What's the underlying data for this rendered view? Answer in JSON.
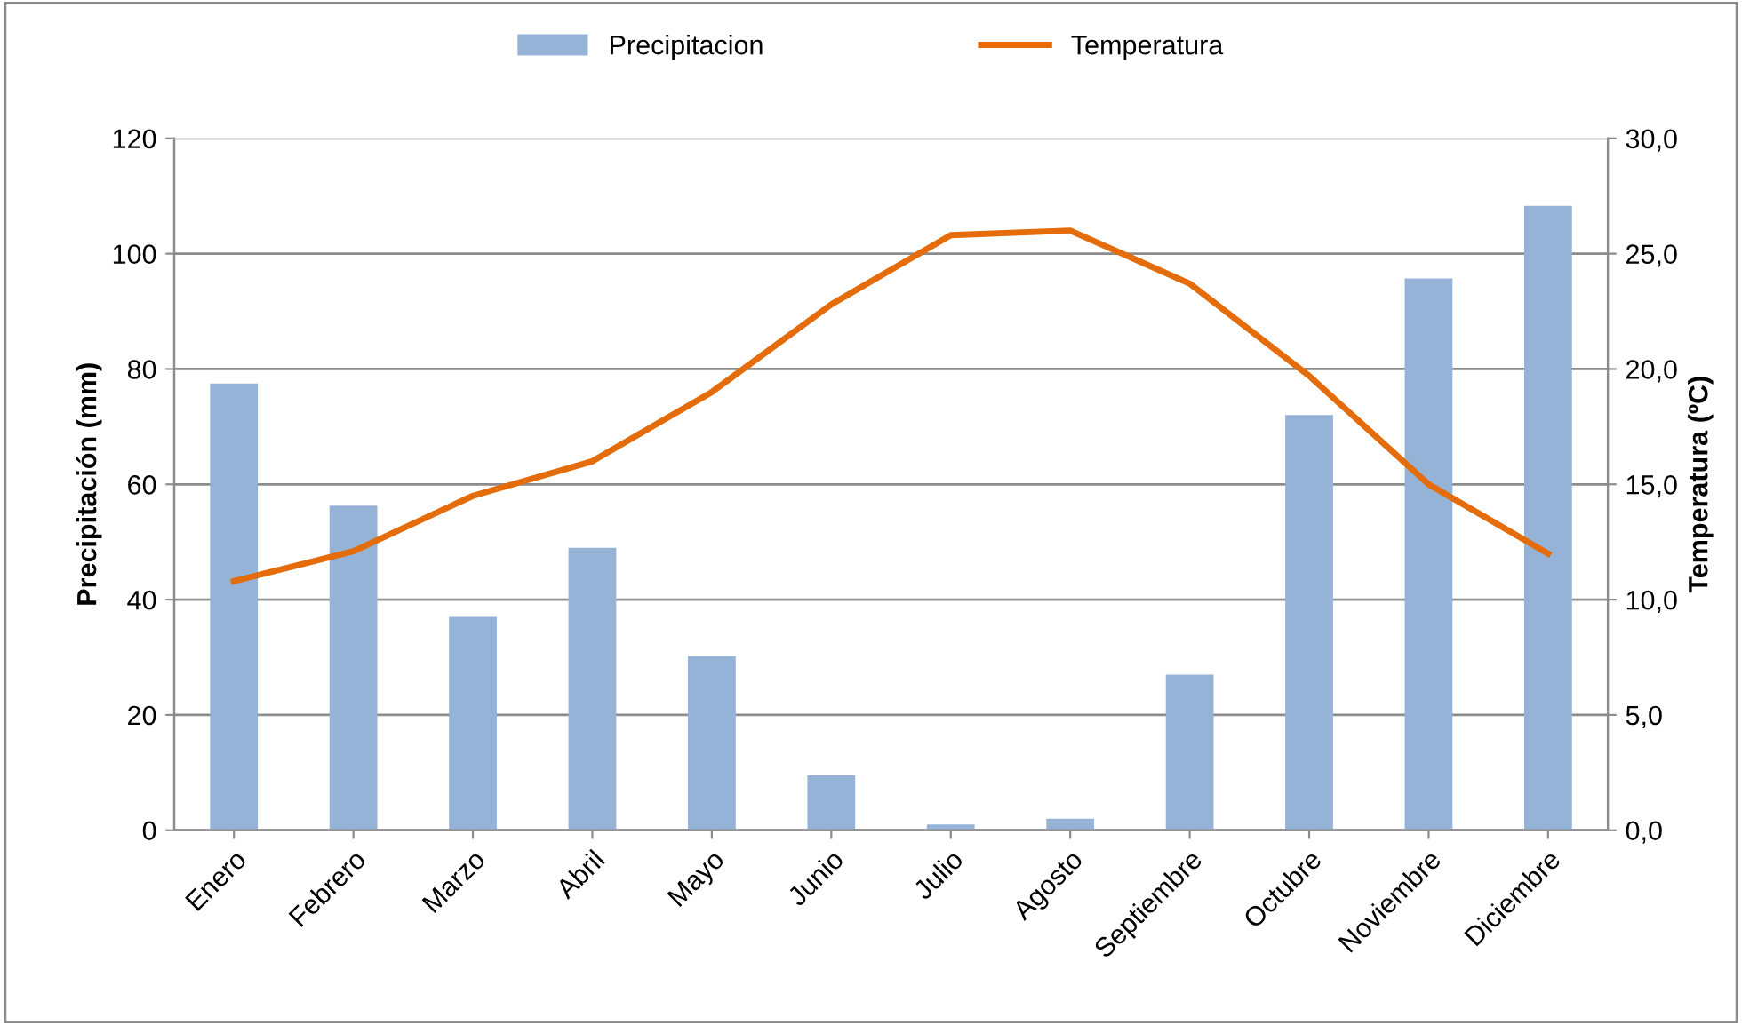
{
  "chart_data": {
    "type": "bar",
    "categories": [
      "Enero",
      "Febrero",
      "Marzo",
      "Abril",
      "Mayo",
      "Junio",
      "Julio",
      "Agosto",
      "Septiembre",
      "Octubre",
      "Noviembre",
      "Diciembre"
    ],
    "series": [
      {
        "name": "Precipitacion",
        "color": "#95b3d7",
        "values": [
          77.5,
          56.3,
          37,
          49,
          30.2,
          9.5,
          1,
          2,
          27,
          72,
          95.7,
          108.3
        ]
      },
      {
        "name": "Temperatura",
        "type": "line",
        "axis": "y2",
        "color": "#e46c0a",
        "values": [
          10.8,
          12.1,
          14.5,
          16,
          19,
          22.8,
          25.8,
          26,
          23.7,
          19.7,
          15,
          12
        ]
      }
    ],
    "ylabel": "Precipitación (mm)",
    "y2label": "Temperatura (ºC)",
    "ylim": [
      0,
      120
    ],
    "yticks": [
      0,
      20,
      40,
      60,
      80,
      100,
      120
    ],
    "y2lim": [
      0,
      30
    ],
    "y2ticks": [
      {
        "value": 0,
        "label": "0,0"
      },
      {
        "value": 5,
        "label": "5,0"
      },
      {
        "value": 10,
        "label": "10,0"
      },
      {
        "value": 15,
        "label": "15,0"
      },
      {
        "value": 20,
        "label": "20,0"
      },
      {
        "value": 25,
        "label": "25,0"
      },
      {
        "value": 30,
        "label": "30,0"
      }
    ],
    "grid": "y",
    "legend": "top",
    "marker": "none",
    "line_style": "solid"
  }
}
